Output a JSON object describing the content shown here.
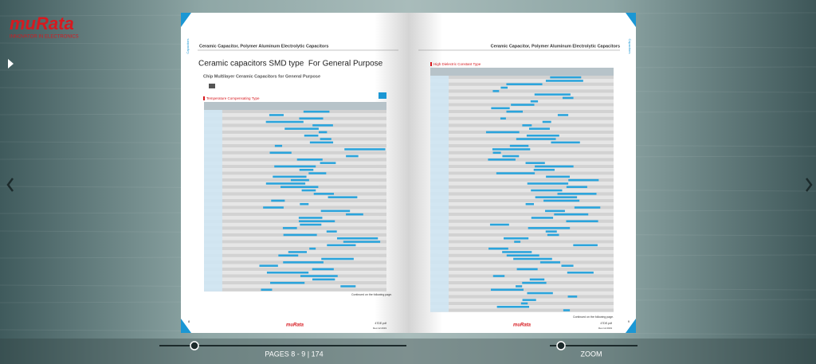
{
  "brand": {
    "logo": "muRata",
    "tagline": "INNOVATOR IN ELECTRONICS"
  },
  "left_page": {
    "header": "Ceramic Capacitor, Polymer Aluminum Electrolytic Capacitors",
    "tab": "Capacitors",
    "title": "Ceramic capacitors SMD type  For General Purpose",
    "subtitle": "Chip Multilayer Ceramic Capacitors for General Purpose",
    "section": "Temperature Compensating Type",
    "continued": "Continued on the following page.",
    "page_number": "8",
    "footer_logo": "muRata",
    "footer_file": "47DE.pdf",
    "footer_date": "Dec.12.2019"
  },
  "right_page": {
    "header": "Ceramic Capacitor, Polymer Aluminum Electrolytic Capacitors",
    "tab": "Capacitors",
    "section": "High Dielectric Constant Type",
    "continued": "Continued on the following page.",
    "page_number": "9",
    "footer_logo": "muRata",
    "footer_file": "47DE.pdf",
    "footer_date": "Dec.12.2019"
  },
  "toolbar": {
    "pages": "PAGES 8 - 9 | 174",
    "zoom": "ZOOM"
  }
}
